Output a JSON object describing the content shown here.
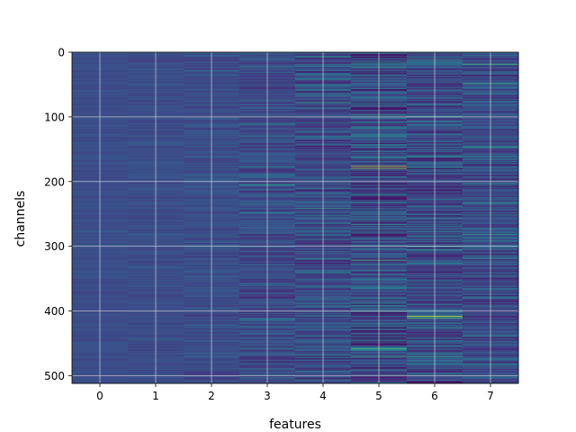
{
  "chart_data": {
    "type": "heatmap",
    "xlabel": "features",
    "ylabel": "channels",
    "x_ticks": [
      "0",
      "1",
      "2",
      "3",
      "4",
      "5",
      "6",
      "7"
    ],
    "y_ticks": [
      "0",
      "100",
      "200",
      "300",
      "400",
      "500"
    ],
    "y_tick_values": [
      0,
      100,
      200,
      300,
      400,
      500
    ],
    "xlim": [
      -0.5,
      7.5
    ],
    "ylim": [
      512,
      0
    ],
    "n_features": 8,
    "n_channels": 512,
    "grid": true,
    "colormap": "viridis",
    "column_variability": [
      0.03,
      0.04,
      0.06,
      0.1,
      0.14,
      0.18,
      0.16,
      0.14
    ],
    "notable_bands": [
      {
        "feature": 3,
        "channel": 204,
        "value": 0.55
      },
      {
        "feature": 4,
        "channel": 218,
        "value": 0.5
      },
      {
        "feature": 5,
        "channel": 176,
        "value": 0.9
      },
      {
        "feature": 5,
        "channel": 179,
        "value": 0.85
      },
      {
        "feature": 5,
        "channel": 22,
        "value": 0.6
      },
      {
        "feature": 5,
        "channel": 458,
        "value": 0.7
      },
      {
        "feature": 5,
        "channel": 470,
        "value": 0.65
      },
      {
        "feature": 6,
        "channel": 408,
        "value": 0.95
      },
      {
        "feature": 6,
        "channel": 411,
        "value": 0.75
      },
      {
        "feature": 6,
        "channel": 300,
        "value": 0.55
      },
      {
        "feature": 7,
        "channel": 18,
        "value": 0.7
      },
      {
        "feature": 7,
        "channel": 48,
        "value": 0.65
      },
      {
        "feature": 7,
        "channel": 232,
        "value": 0.6
      },
      {
        "feature": 7,
        "channel": 318,
        "value": 0.55
      }
    ]
  }
}
